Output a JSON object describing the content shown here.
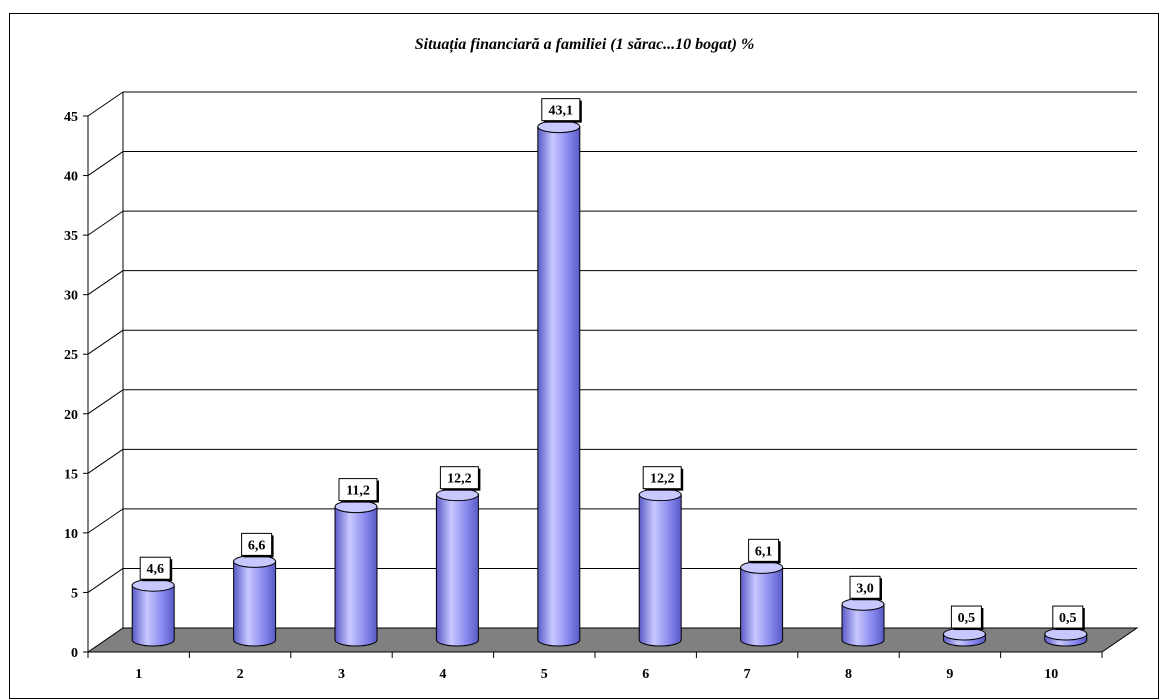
{
  "chart_data": {
    "type": "bar",
    "title": "Situația financiară a familiei (1 sărac...10 bogat) %",
    "categories": [
      "1",
      "2",
      "3",
      "4",
      "5",
      "6",
      "7",
      "8",
      "9",
      "10"
    ],
    "values": [
      4.6,
      6.6,
      11.2,
      12.2,
      43.1,
      12.2,
      6.1,
      3.0,
      0.5,
      0.5
    ],
    "value_labels": [
      "4,6",
      "6,6",
      "11,2",
      "12,2",
      "43,1",
      "12,2",
      "6,1",
      "3,0",
      "0,5",
      "0,5"
    ],
    "y_ticks": [
      "0",
      "5",
      "10",
      "15",
      "20",
      "25",
      "30",
      "35",
      "40",
      "45"
    ],
    "ylim": [
      0,
      45
    ],
    "grid": true,
    "bar_style": "3d-cylinder",
    "colors": {
      "bar": "#8c8cf0",
      "bar_dark": "#5a5ac8",
      "bar_light": "#c8c8ff",
      "floor": "#808080"
    }
  }
}
